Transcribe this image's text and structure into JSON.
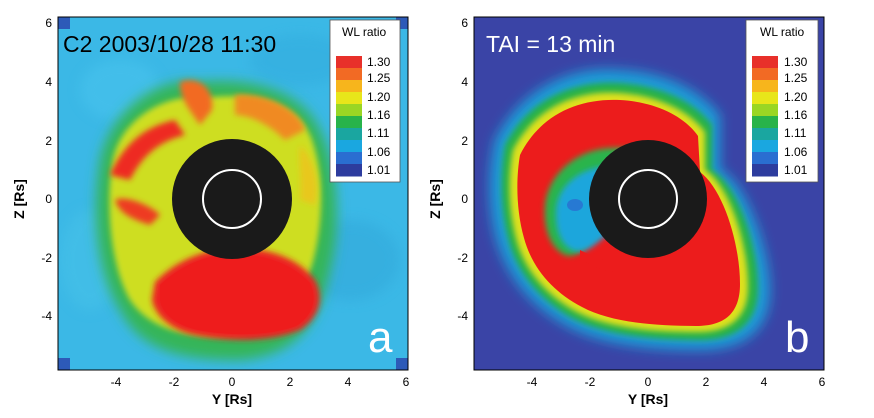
{
  "panels": [
    {
      "id": "a",
      "title": "C2 2003/10/28  11:30",
      "title_color": "#000000",
      "letter": "a",
      "background": "#3bb8e6",
      "xlabel": "Y [Rs]",
      "ylabel": "Z [Rs]",
      "xticks": [
        "-4",
        "-2",
        "0",
        "2",
        "4",
        "6"
      ],
      "yticks": [
        "6",
        "4",
        "2",
        "0",
        "-2",
        "-4"
      ]
    },
    {
      "id": "b",
      "title": "TAI = 13 min",
      "title_color": "#ffffff",
      "letter": "b",
      "background": "#3a44a6",
      "xlabel": "Y [Rs]",
      "ylabel": "Z [Rs]",
      "xticks": [
        "-4",
        "-2",
        "0",
        "2",
        "4",
        "6"
      ],
      "yticks": [
        "6",
        "4",
        "2",
        "0",
        "-2",
        "-4"
      ]
    }
  ],
  "colorbar": {
    "title": "WL ratio",
    "labels": [
      "1.30",
      "1.25",
      "1.20",
      "1.16",
      "1.11",
      "1.06",
      "1.01"
    ],
    "colors": [
      "#e8302a",
      "#f26a24",
      "#f7b51c",
      "#e8e61a",
      "#9ad624",
      "#28b34a",
      "#1aa6a0",
      "#1aa7e0",
      "#2a6ed1",
      "#2d3c9e"
    ]
  },
  "colors": {
    "occulter": "#1a1a1a",
    "sun_limb": "#ffffff",
    "red": "#ee2020",
    "green": "#33b34a",
    "yellow": "#e8e21a"
  }
}
